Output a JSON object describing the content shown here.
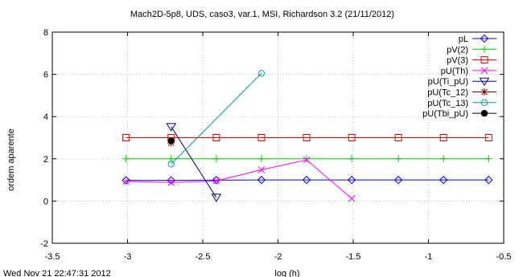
{
  "chart_data": {
    "type": "line",
    "title": "Mach2D-5p8, UDS, caso3, var.1, MSI, Richardson 3.2 (21/11/2012)",
    "xlabel": "log (h)",
    "ylabel": "ordem aparente",
    "footer": "Wed Nov 21 22:47:31 2012",
    "xlim": [
      -3.5,
      -0.5
    ],
    "ylim": [
      -2,
      8
    ],
    "xticks": [
      -3.5,
      -3,
      -2.5,
      -2,
      -1.5,
      -1,
      -0.5
    ],
    "xtick_labels": [
      "-3.5",
      "-3",
      "-2.5",
      "-2",
      "-1.5",
      "-1",
      "-0.5"
    ],
    "yticks": [
      -2,
      0,
      2,
      4,
      6,
      8
    ],
    "ytick_labels": [
      "-2",
      "0",
      "2",
      "4",
      "6",
      "8"
    ],
    "grid": true,
    "legend_position": "top-right",
    "series": [
      {
        "name": "pL",
        "color": "#0000ff",
        "marker": "diamond",
        "points": [
          [
            -3.01,
            0.98
          ],
          [
            -2.71,
            0.98
          ],
          [
            -2.41,
            0.99
          ],
          [
            -2.11,
            1.0
          ],
          [
            -1.81,
            1.0
          ],
          [
            -1.51,
            1.0
          ],
          [
            -1.2,
            1.0
          ],
          [
            -0.9,
            1.0
          ],
          [
            -0.6,
            1.0
          ]
        ]
      },
      {
        "name": "pV(2)",
        "color": "#00cc00",
        "marker": "plus",
        "points": [
          [
            -3.01,
            2.0
          ],
          [
            -2.71,
            2.0
          ],
          [
            -2.41,
            2.0
          ],
          [
            -2.11,
            2.0
          ],
          [
            -1.81,
            2.0
          ],
          [
            -1.51,
            2.0
          ],
          [
            -1.2,
            2.0
          ],
          [
            -0.9,
            2.0
          ],
          [
            -0.6,
            2.0
          ]
        ]
      },
      {
        "name": "pV(3)",
        "color": "#dd0000",
        "marker": "square",
        "points": [
          [
            -3.01,
            3.0
          ],
          [
            -2.71,
            3.0
          ],
          [
            -2.41,
            3.0
          ],
          [
            -2.11,
            3.0
          ],
          [
            -1.81,
            3.0
          ],
          [
            -1.51,
            3.0
          ],
          [
            -1.2,
            3.0
          ],
          [
            -0.9,
            3.0
          ],
          [
            -0.6,
            3.0
          ]
        ]
      },
      {
        "name": "pU(Th)",
        "color": "#ff00ff",
        "marker": "x",
        "points": [
          [
            -3.01,
            0.93
          ],
          [
            -2.71,
            0.88
          ],
          [
            -2.41,
            0.95
          ],
          [
            -2.11,
            1.48
          ],
          [
            -1.81,
            1.95
          ],
          [
            -1.51,
            0.12
          ]
        ]
      },
      {
        "name": "pU(Ti_pU)",
        "color": "#000080",
        "marker": "triangle-down",
        "points": [
          [
            -2.71,
            3.52
          ],
          [
            -2.41,
            0.17
          ]
        ]
      },
      {
        "name": "pU(Tc_12)",
        "color": "#800000",
        "marker": "star",
        "points": [
          [
            -2.71,
            2.75
          ]
        ]
      },
      {
        "name": "pU(Tc_13)",
        "color": "#009999",
        "marker": "circle",
        "points": [
          [
            -2.71,
            1.75
          ],
          [
            -2.11,
            6.05
          ]
        ]
      },
      {
        "name": "pU(Tbi_pU)",
        "color": "#000000",
        "marker": "filled-circle",
        "points": [
          [
            -2.71,
            2.85
          ]
        ]
      }
    ]
  }
}
